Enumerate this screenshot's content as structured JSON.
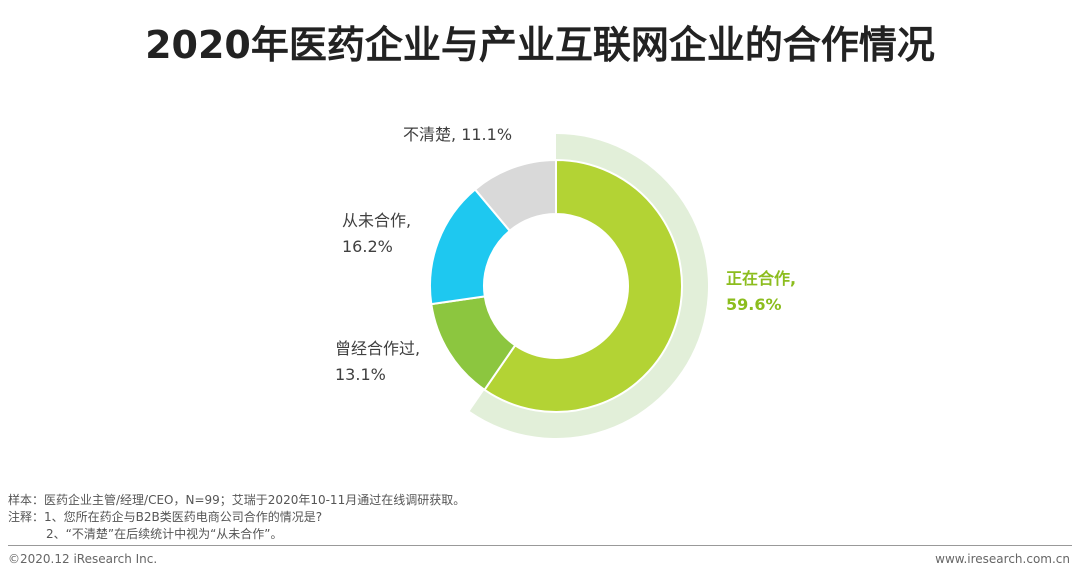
{
  "chart_data": {
    "type": "pie",
    "variant": "donut",
    "title": "2020年医药企业与产业互联网企业的合作情况",
    "slices": [
      {
        "name": "正在合作,",
        "value": 59.6,
        "label": "59.6%",
        "color": "#b3d334",
        "highlight": true
      },
      {
        "name": "曾经合作过,",
        "value": 13.1,
        "label": "13.1%",
        "color": "#8cc63f"
      },
      {
        "name": "从未合作,",
        "value": 16.2,
        "label": "16.2%",
        "color": "#1ec8f0"
      },
      {
        "name": "不清楚,",
        "value": 11.1,
        "label": "11.1%",
        "color": "#d9d9d9"
      }
    ],
    "highlight_ring_color": "#e2efd9"
  },
  "notes": {
    "sample": "样本：医药企业主管/经理/CEO，N=99；艾瑞于2020年10-11月通过在线调研获取。",
    "note1": "注释：1、您所在药企与B2B类医药电商公司合作的情况是?",
    "note2": "2、“不清楚”在后续统计中视为“从未合作”。"
  },
  "footer": {
    "copyright": "©2020.12 iResearch Inc.",
    "website": "www.iresearch.com.cn"
  }
}
